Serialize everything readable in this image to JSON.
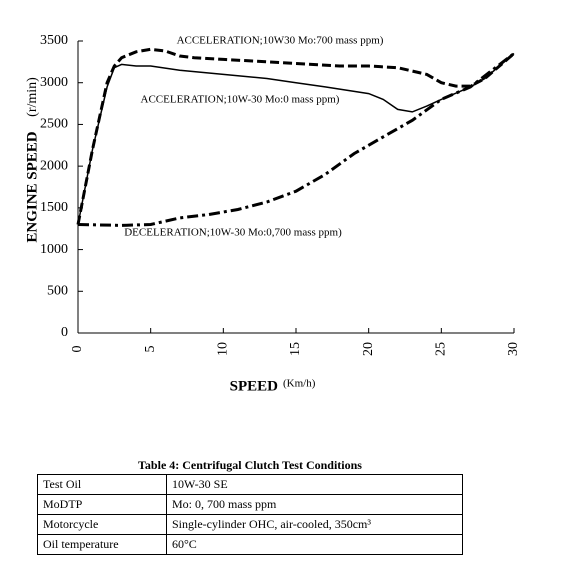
{
  "chart_data": {
    "type": "line",
    "ylabel": "ENGINE SPEED",
    "ylabel_unit": "(r/min)",
    "xlabel": "SPEED",
    "xlabel_unit": "(Km/h)",
    "xlim": [
      0,
      30
    ],
    "xticks": [
      0,
      5,
      10,
      15,
      20,
      25,
      30
    ],
    "ylim": [
      0,
      3500
    ],
    "yticks": [
      0,
      500,
      1000,
      1500,
      2000,
      2500,
      3000,
      3500
    ],
    "series": [
      {
        "name": "ACCELERATION;10W30 Mo:700 mass ppm)",
        "color": "#000000",
        "line_style": "dashed",
        "x": [
          0,
          1,
          2,
          2.5,
          3,
          4,
          5,
          6,
          7,
          8,
          10,
          12,
          15,
          18,
          20,
          22,
          24,
          25,
          26,
          27,
          28,
          29,
          30
        ],
        "values": [
          1300,
          2200,
          3000,
          3200,
          3300,
          3370,
          3400,
          3380,
          3320,
          3300,
          3280,
          3260,
          3230,
          3200,
          3200,
          3180,
          3100,
          3000,
          2960,
          2960,
          3050,
          3200,
          3350
        ]
      },
      {
        "name": "ACCELERATION;10W-30 Mo:0 mass ppm)",
        "color": "#000000",
        "line_style": "solid",
        "x": [
          0,
          1,
          2,
          2.5,
          3,
          4,
          5,
          7,
          10,
          13,
          15,
          17,
          20,
          21,
          22,
          23,
          24,
          25,
          27,
          28,
          30
        ],
        "values": [
          1300,
          2200,
          2950,
          3180,
          3220,
          3200,
          3200,
          3150,
          3100,
          3050,
          3000,
          2950,
          2870,
          2800,
          2680,
          2650,
          2720,
          2800,
          2950,
          3050,
          3350
        ]
      },
      {
        "name": "DECELERATION;10W-30 Mo:0,700 mass ppm)",
        "color": "#000000",
        "line_style": "dashdot",
        "x": [
          0,
          3,
          5,
          7,
          9,
          11,
          13,
          15,
          17,
          19,
          21,
          23,
          25,
          27,
          30
        ],
        "values": [
          1300,
          1290,
          1300,
          1380,
          1420,
          1480,
          1570,
          1700,
          1900,
          2150,
          2350,
          2550,
          2800,
          2950,
          3350
        ]
      }
    ]
  },
  "table": {
    "title": "Table 4: Centrifugal Clutch Test Conditions",
    "rows": [
      [
        "Test Oil",
        "10W-30 SE"
      ],
      [
        "MoDTP",
        "Mo: 0,  700 mass ppm"
      ],
      [
        "Motorcycle",
        "Single-cylinder OHC, air-cooled, 350cm³"
      ],
      [
        "Oil temperature",
        "60°C"
      ]
    ]
  }
}
